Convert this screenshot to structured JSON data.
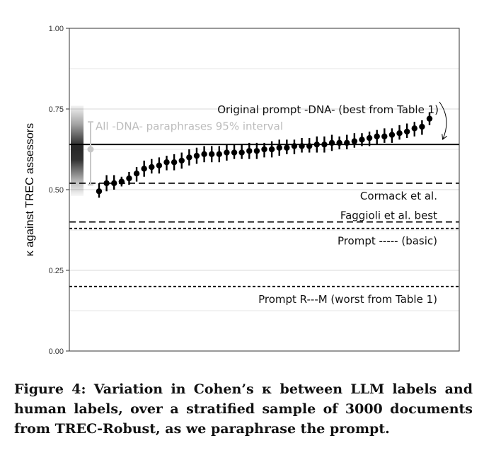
{
  "chart_data": {
    "type": "scatter",
    "ylabel": "κ against TREC assessors",
    "xlabel": "",
    "ylim": [
      0,
      1
    ],
    "yticks": [
      "0.00",
      "0.25",
      "0.50",
      "0.75",
      "1.00"
    ],
    "grid": true,
    "points": [
      {
        "y": 0.495,
        "lo": 0.475,
        "hi": 0.52
      },
      {
        "y": 0.52,
        "lo": 0.495,
        "hi": 0.545
      },
      {
        "y": 0.52,
        "lo": 0.5,
        "hi": 0.545
      },
      {
        "y": 0.525,
        "lo": 0.51,
        "hi": 0.54
      },
      {
        "y": 0.535,
        "lo": 0.515,
        "hi": 0.555
      },
      {
        "y": 0.55,
        "lo": 0.525,
        "hi": 0.57
      },
      {
        "y": 0.565,
        "lo": 0.54,
        "hi": 0.59
      },
      {
        "y": 0.57,
        "lo": 0.55,
        "hi": 0.595
      },
      {
        "y": 0.575,
        "lo": 0.55,
        "hi": 0.6
      },
      {
        "y": 0.585,
        "lo": 0.56,
        "hi": 0.605
      },
      {
        "y": 0.585,
        "lo": 0.56,
        "hi": 0.61
      },
      {
        "y": 0.59,
        "lo": 0.565,
        "hi": 0.615
      },
      {
        "y": 0.6,
        "lo": 0.575,
        "hi": 0.625
      },
      {
        "y": 0.605,
        "lo": 0.58,
        "hi": 0.63
      },
      {
        "y": 0.61,
        "lo": 0.585,
        "hi": 0.635
      },
      {
        "y": 0.61,
        "lo": 0.585,
        "hi": 0.635
      },
      {
        "y": 0.61,
        "lo": 0.585,
        "hi": 0.635
      },
      {
        "y": 0.615,
        "lo": 0.59,
        "hi": 0.64
      },
      {
        "y": 0.615,
        "lo": 0.595,
        "hi": 0.64
      },
      {
        "y": 0.615,
        "lo": 0.595,
        "hi": 0.64
      },
      {
        "y": 0.62,
        "lo": 0.595,
        "hi": 0.645
      },
      {
        "y": 0.62,
        "lo": 0.595,
        "hi": 0.645
      },
      {
        "y": 0.625,
        "lo": 0.6,
        "hi": 0.645
      },
      {
        "y": 0.625,
        "lo": 0.6,
        "hi": 0.65
      },
      {
        "y": 0.63,
        "lo": 0.605,
        "hi": 0.655
      },
      {
        "y": 0.63,
        "lo": 0.61,
        "hi": 0.655
      },
      {
        "y": 0.635,
        "lo": 0.61,
        "hi": 0.655
      },
      {
        "y": 0.635,
        "lo": 0.615,
        "hi": 0.66
      },
      {
        "y": 0.635,
        "lo": 0.615,
        "hi": 0.66
      },
      {
        "y": 0.64,
        "lo": 0.615,
        "hi": 0.665
      },
      {
        "y": 0.64,
        "lo": 0.615,
        "hi": 0.665
      },
      {
        "y": 0.645,
        "lo": 0.62,
        "hi": 0.67
      },
      {
        "y": 0.645,
        "lo": 0.625,
        "hi": 0.665
      },
      {
        "y": 0.645,
        "lo": 0.625,
        "hi": 0.67
      },
      {
        "y": 0.65,
        "lo": 0.63,
        "hi": 0.675
      },
      {
        "y": 0.655,
        "lo": 0.635,
        "hi": 0.675
      },
      {
        "y": 0.66,
        "lo": 0.635,
        "hi": 0.68
      },
      {
        "y": 0.665,
        "lo": 0.64,
        "hi": 0.685
      },
      {
        "y": 0.665,
        "lo": 0.645,
        "hi": 0.69
      },
      {
        "y": 0.67,
        "lo": 0.645,
        "hi": 0.69
      },
      {
        "y": 0.675,
        "lo": 0.655,
        "hi": 0.7
      },
      {
        "y": 0.68,
        "lo": 0.66,
        "hi": 0.705
      },
      {
        "y": 0.69,
        "lo": 0.665,
        "hi": 0.71
      },
      {
        "y": 0.695,
        "lo": 0.67,
        "hi": 0.715
      },
      {
        "y": 0.72,
        "lo": 0.7,
        "hi": 0.74
      }
    ],
    "paraphrase_interval": {
      "label": "All -DNA- paraphrases 95% interval",
      "mean": 0.625,
      "lo": 0.515,
      "hi": 0.71
    },
    "reference_lines": [
      {
        "label": "Original prompt -DNA- (best from Table 1)",
        "y": 0.64,
        "style": "solid"
      },
      {
        "label": "Cormack et al.",
        "y": 0.52,
        "style": "dashed"
      },
      {
        "label": "Faggioli et al. best",
        "y": 0.4,
        "style": "dashed"
      },
      {
        "label": "Prompt ----- (basic)",
        "y": 0.38,
        "style": "dotted"
      },
      {
        "label": "Prompt R---M (worst from Table 1)",
        "y": 0.2,
        "style": "dotted"
      }
    ]
  },
  "caption": "Figure 4: Variation in Cohen’s κ between LLM labels and human labels, over a stratified sample of 3000 documents from TREC-Robust, as we paraphrase the prompt.",
  "colors": {
    "points": "#000000",
    "interval": "#c8c8c8",
    "grid": "#e6e6e6",
    "frame": "#333333"
  }
}
